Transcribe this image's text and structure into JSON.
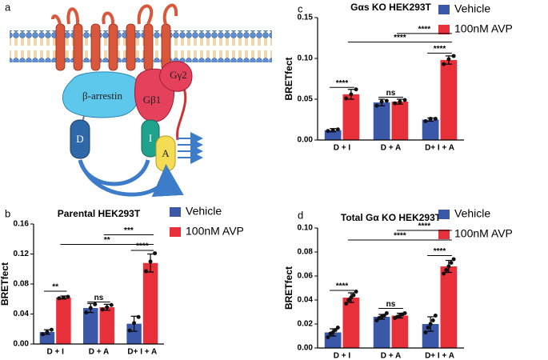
{
  "diagram": {
    "panel": "a",
    "labels": [
      "β-arrestin",
      "Gβ1",
      "Gγ2",
      "D",
      "I",
      "A"
    ]
  },
  "chart_data": [
    {
      "type": "bar",
      "panel": "b",
      "title": "Parental HEK293T",
      "ylabel": "BRETfect",
      "categories": [
        "D + I",
        "D + A",
        "D+ I + A"
      ],
      "series": [
        {
          "name": "Vehicle",
          "color": "#3a57a8",
          "values": [
            0.016,
            0.048,
            0.027
          ],
          "errors": [
            0.003,
            0.006,
            0.01
          ],
          "points": [
            [
              0.013,
              0.016,
              0.019
            ],
            [
              0.042,
              0.048,
              0.053
            ],
            [
              0.018,
              0.028,
              0.036
            ]
          ]
        },
        {
          "name": "100nM AVP",
          "color": "#e8303a",
          "values": [
            0.062,
            0.049,
            0.108
          ],
          "errors": [
            0.002,
            0.004,
            0.012
          ],
          "points": [
            [
              0.061,
              0.062,
              0.063
            ],
            [
              0.046,
              0.049,
              0.052
            ],
            [
              0.097,
              0.11,
              0.121
            ]
          ]
        }
      ],
      "ylim": [
        0,
        0.16
      ],
      "yticks": [
        {
          "value": 0,
          "label": "0.00"
        },
        {
          "value": 0.04,
          "label": "0.04"
        },
        {
          "value": 0.08,
          "label": "0.08"
        },
        {
          "value": 0.12,
          "label": "0.12"
        },
        {
          "value": 0.16,
          "label": "0.16"
        }
      ],
      "annotations": [
        "**",
        "ns",
        "****",
        "**",
        "***"
      ]
    },
    {
      "type": "bar",
      "panel": "c",
      "title": "Gαs KO HEK293T",
      "ylabel": "BRETfect",
      "categories": [
        "D + I",
        "D + A",
        "D+ I + A"
      ],
      "series": [
        {
          "name": "Vehicle",
          "color": "#3a57a8",
          "values": [
            0.012,
            0.046,
            0.025
          ],
          "errors": [
            0.002,
            0.004,
            0.002
          ],
          "points": [
            [
              0.011,
              0.012,
              0.013
            ],
            [
              0.042,
              0.047,
              0.048
            ],
            [
              0.023,
              0.026,
              0.026
            ]
          ]
        },
        {
          "name": "100nM AVP",
          "color": "#e8303a",
          "values": [
            0.056,
            0.047,
            0.098
          ],
          "errors": [
            0.006,
            0.003,
            0.005
          ],
          "points": [
            [
              0.051,
              0.056,
              0.062
            ],
            [
              0.045,
              0.047,
              0.049
            ],
            [
              0.093,
              0.099,
              0.103
            ]
          ]
        }
      ],
      "ylim": [
        0,
        0.15
      ],
      "yticks": [
        {
          "value": 0,
          "label": "0.00"
        },
        {
          "value": 0.05,
          "label": "0.05"
        },
        {
          "value": 0.1,
          "label": "0.10"
        },
        {
          "value": 0.15,
          "label": "0.15"
        }
      ],
      "annotations": [
        "****",
        "ns",
        "****",
        "****",
        "****"
      ]
    },
    {
      "type": "bar",
      "panel": "d",
      "title": "Total Gα KO HEK293T",
      "ylabel": "BRETfect",
      "categories": [
        "D + I",
        "D + A",
        "D+ I + A"
      ],
      "series": [
        {
          "name": "Vehicle",
          "color": "#3a57a8",
          "values": [
            0.013,
            0.026,
            0.02
          ],
          "errors": [
            0.003,
            0.002,
            0.006
          ],
          "points": [
            [
              0.009,
              0.012,
              0.013,
              0.015,
              0.017
            ],
            [
              0.023,
              0.025,
              0.026,
              0.027,
              0.029
            ],
            [
              0.013,
              0.017,
              0.02,
              0.023,
              0.027
            ]
          ]
        },
        {
          "name": "100nM AVP",
          "color": "#e8303a",
          "values": [
            0.042,
            0.027,
            0.068
          ],
          "errors": [
            0.004,
            0.002,
            0.005
          ],
          "points": [
            [
              0.037,
              0.04,
              0.042,
              0.044,
              0.047
            ],
            [
              0.025,
              0.026,
              0.027,
              0.028,
              0.029
            ],
            [
              0.062,
              0.065,
              0.068,
              0.071,
              0.074
            ]
          ]
        }
      ],
      "ylim": [
        0,
        0.1
      ],
      "yticks": [
        {
          "value": 0,
          "label": "0.00"
        },
        {
          "value": 0.02,
          "label": "0.02"
        },
        {
          "value": 0.04,
          "label": "0.04"
        },
        {
          "value": 0.06,
          "label": "0.06"
        },
        {
          "value": 0.08,
          "label": "0.08"
        },
        {
          "value": 0.1,
          "label": "0.10"
        }
      ],
      "annotations": [
        "****",
        "ns",
        "****",
        "****",
        "****"
      ]
    }
  ]
}
